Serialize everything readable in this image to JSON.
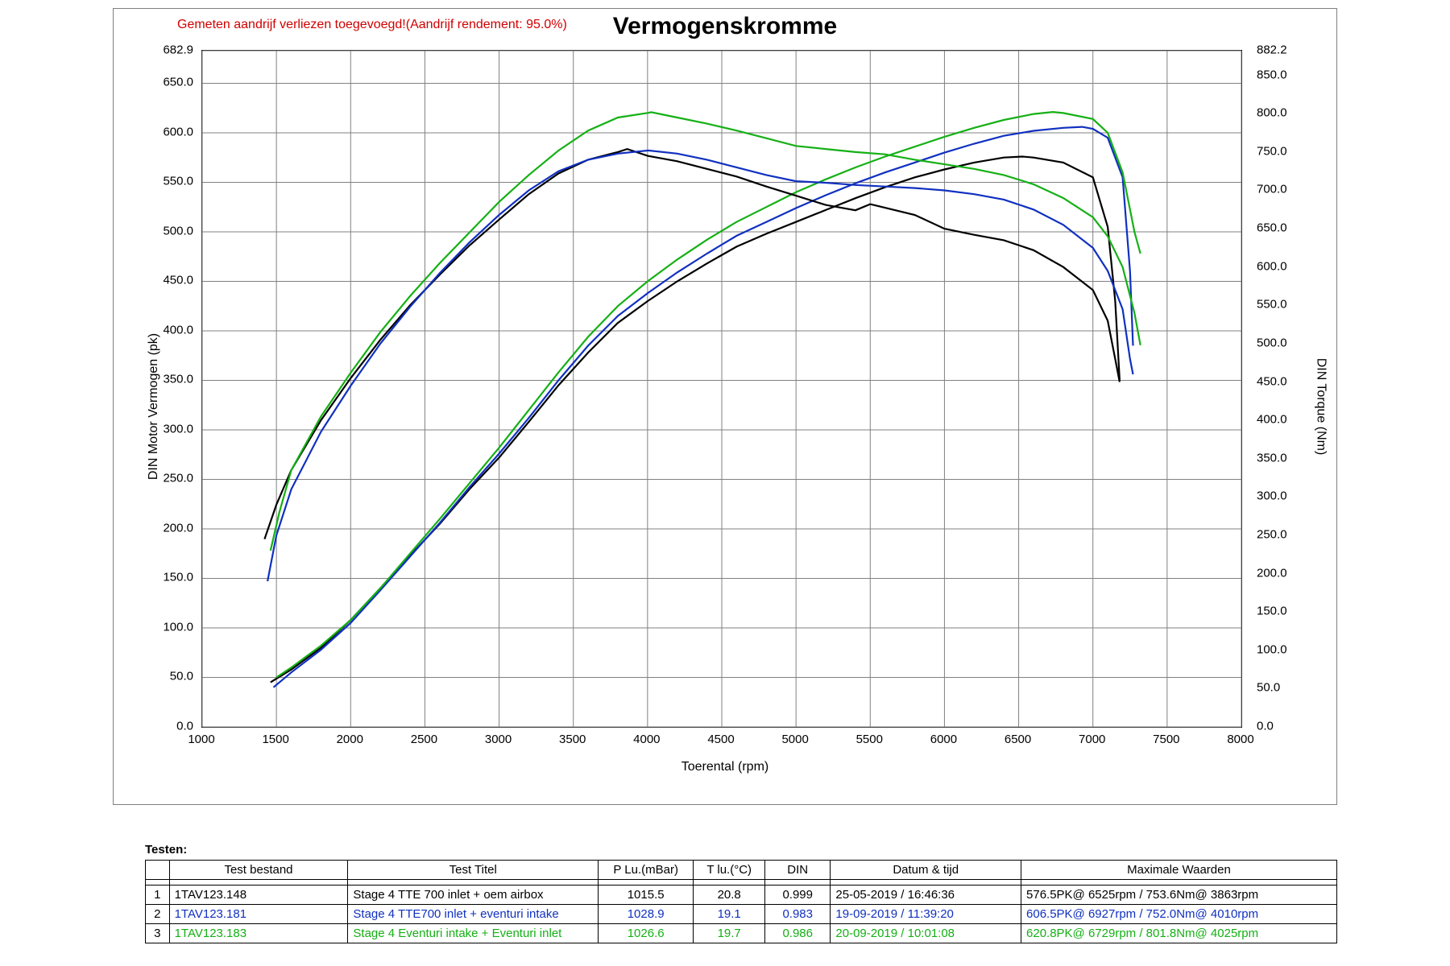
{
  "chart": {
    "title": "Vermogenskromme",
    "warning": "Gemeten aandrijf verliezen toegevoegd!(Aandrijf rendement: 95.0%)",
    "warning_color": "#d00000",
    "background_color": "#ffffff",
    "border_color": "#808080",
    "grid_color": "#808080",
    "title_fontsize": 30,
    "axis_fontsize": 16,
    "tick_fontsize": 15,
    "x_axis": {
      "label": "Toerental (rpm)",
      "min": 1000,
      "max": 8000,
      "tick_step": 500,
      "ticks": [
        1000,
        1500,
        2000,
        2500,
        3000,
        3500,
        4000,
        4500,
        5000,
        5500,
        6000,
        6500,
        7000,
        7500,
        8000
      ]
    },
    "y_left": {
      "label": "DIN Motor Vermogen (pk)",
      "min": 0,
      "max": 682.9,
      "ticks": [
        0,
        50,
        100,
        150,
        200,
        250,
        300,
        350,
        400,
        450,
        500,
        550,
        600,
        650,
        682.9
      ]
    },
    "y_right": {
      "label": "DIN Torque (Nm)",
      "min": 0,
      "max": 882.2,
      "ticks": [
        0,
        50,
        100,
        150,
        200,
        250,
        300,
        350,
        400,
        450,
        500,
        550,
        600,
        650,
        700,
        750,
        800,
        850,
        882.2
      ]
    },
    "line_width": 2.2,
    "series": [
      {
        "id": "run1_power",
        "axis": "left",
        "color": "#000000",
        "rpm": [
          1460,
          1600,
          1800,
          2000,
          2200,
          2400,
          2600,
          2800,
          3000,
          3200,
          3400,
          3600,
          3800,
          4000,
          4200,
          4400,
          4600,
          4800,
          5000,
          5200,
          5400,
          5600,
          5800,
          6000,
          6200,
          6400,
          6525,
          6600,
          6800,
          7000,
          7100,
          7150,
          7180
        ],
        "value": [
          45,
          58,
          80,
          108,
          140,
          173,
          205,
          240,
          272,
          308,
          345,
          378,
          408,
          430,
          450,
          468,
          485,
          498,
          510,
          522,
          534,
          545,
          555,
          563,
          570,
          575,
          576,
          575,
          570,
          555,
          505,
          430,
          350
        ]
      },
      {
        "id": "run2_power",
        "axis": "left",
        "color": "#1030c0",
        "rpm": [
          1480,
          1600,
          1800,
          2000,
          2200,
          2400,
          2600,
          2800,
          3000,
          3200,
          3400,
          3600,
          3800,
          4000,
          4200,
          4400,
          4600,
          4800,
          5000,
          5200,
          5400,
          5600,
          5800,
          6000,
          6200,
          6400,
          6600,
          6800,
          6927,
          7000,
          7100,
          7200,
          7250,
          7270
        ],
        "value": [
          40,
          55,
          78,
          105,
          138,
          172,
          206,
          242,
          276,
          312,
          350,
          385,
          415,
          438,
          459,
          478,
          496,
          510,
          524,
          537,
          549,
          560,
          570,
          580,
          589,
          597,
          602,
          605,
          606,
          604,
          595,
          555,
          460,
          385
        ]
      },
      {
        "id": "run3_power",
        "axis": "left",
        "color": "#15b015",
        "rpm": [
          1500,
          1600,
          1800,
          2000,
          2200,
          2400,
          2600,
          2800,
          3000,
          3200,
          3400,
          3600,
          3800,
          4000,
          4200,
          4400,
          4600,
          4800,
          5000,
          5200,
          5400,
          5600,
          5800,
          6000,
          6200,
          6400,
          6600,
          6729,
          6800,
          7000,
          7100,
          7200,
          7280,
          7320
        ],
        "value": [
          50,
          60,
          82,
          108,
          140,
          175,
          210,
          246,
          282,
          320,
          358,
          394,
          425,
          450,
          472,
          492,
          510,
          525,
          540,
          553,
          565,
          576,
          586,
          596,
          605,
          613,
          619,
          621,
          620,
          614,
          600,
          560,
          500,
          478
        ]
      },
      {
        "id": "run1_torque",
        "axis": "right",
        "color": "#000000",
        "rpm": [
          1420,
          1500,
          1600,
          1800,
          2000,
          2200,
          2400,
          2600,
          2800,
          3000,
          3200,
          3400,
          3600,
          3800,
          3863,
          4000,
          4200,
          4400,
          4600,
          4800,
          5000,
          5200,
          5400,
          5500,
          5800,
          6000,
          6200,
          6400,
          6600,
          6800,
          7000,
          7100,
          7150,
          7180
        ],
        "value": [
          245,
          290,
          335,
          400,
          455,
          505,
          550,
          590,
          628,
          662,
          695,
          722,
          740,
          750,
          754,
          745,
          738,
          728,
          718,
          705,
          693,
          681,
          674,
          682,
          668,
          650,
          642,
          635,
          622,
          600,
          570,
          530,
          480,
          450
        ]
      },
      {
        "id": "run2_torque",
        "axis": "right",
        "color": "#1030c0",
        "rpm": [
          1440,
          1500,
          1600,
          1800,
          2000,
          2200,
          2400,
          2600,
          2800,
          3000,
          3200,
          3400,
          3600,
          3800,
          4000,
          4010,
          4200,
          4400,
          4600,
          4800,
          5000,
          5200,
          5400,
          5600,
          5800,
          6000,
          6200,
          6400,
          6600,
          6800,
          7000,
          7100,
          7200,
          7250,
          7270
        ],
        "value": [
          190,
          250,
          310,
          385,
          445,
          500,
          548,
          592,
          632,
          668,
          700,
          725,
          740,
          748,
          752,
          752,
          748,
          740,
          730,
          720,
          712,
          710,
          707,
          705,
          703,
          700,
          695,
          688,
          675,
          655,
          625,
          595,
          545,
          480,
          460
        ]
      },
      {
        "id": "run3_torque",
        "axis": "right",
        "color": "#15b015",
        "rpm": [
          1460,
          1520,
          1600,
          1800,
          2000,
          2200,
          2400,
          2600,
          2800,
          3000,
          3200,
          3400,
          3600,
          3800,
          4000,
          4025,
          4200,
          4400,
          4600,
          4800,
          5000,
          5200,
          5400,
          5600,
          5800,
          6000,
          6200,
          6400,
          6600,
          6800,
          7000,
          7100,
          7200,
          7280,
          7320
        ],
        "value": [
          230,
          280,
          335,
          405,
          462,
          515,
          562,
          605,
          645,
          685,
          720,
          752,
          778,
          795,
          801,
          802,
          795,
          787,
          778,
          768,
          758,
          754,
          750,
          747,
          740,
          734,
          728,
          720,
          708,
          690,
          665,
          640,
          600,
          540,
          498
        ]
      }
    ]
  },
  "table": {
    "heading": "Testen:",
    "columns": [
      "",
      "Test bestand",
      "Test Titel",
      "P Lu.(mBar)",
      "T lu.(°C)",
      "DIN",
      "Datum & tijd",
      "Maximale Waarden"
    ],
    "col_widths_pct": [
      2.0,
      15.0,
      21.0,
      8.0,
      6.0,
      5.5,
      16.0,
      26.5
    ],
    "center_cols": [
      0,
      3,
      4,
      5
    ],
    "rows": [
      {
        "color": "#000000",
        "cells": [
          "1",
          "1TAV123.148",
          "Stage 4 TTE 700  inlet + oem airbox",
          "1015.5",
          "20.8",
          "0.999",
          "25-05-2019 / 16:46:36",
          "576.5PK@ 6525rpm / 753.6Nm@ 3863rpm"
        ]
      },
      {
        "color": "#1030c0",
        "cells": [
          "2",
          "1TAV123.181",
          "Stage 4 TTE700 inlet + eventuri intake",
          "1028.9",
          "19.1",
          "0.983",
          "19-09-2019 / 11:39:20",
          "606.5PK@ 6927rpm / 752.0Nm@ 4010rpm"
        ]
      },
      {
        "color": "#15b015",
        "cells": [
          "3",
          "1TAV123.183",
          "Stage 4 Eventuri intake + Eventuri inlet",
          "1026.6",
          "19.7",
          "0.986",
          "20-09-2019 / 10:01:08",
          "620.8PK@ 6729rpm / 801.8Nm@ 4025rpm"
        ]
      }
    ]
  }
}
